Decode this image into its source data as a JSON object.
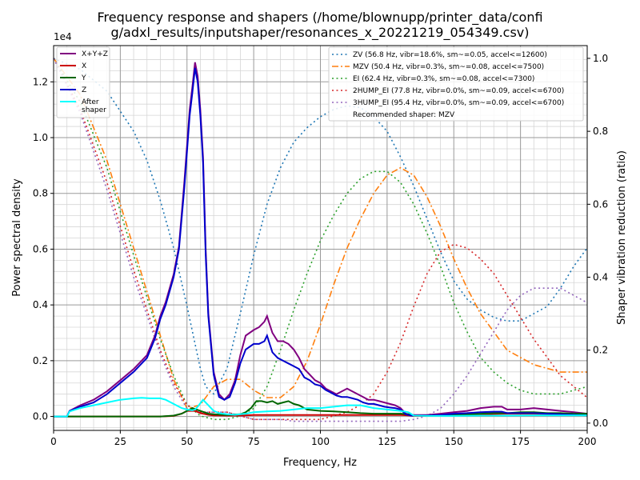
{
  "chart_data": {
    "type": "line",
    "title": "Frequency response and shapers (/home/blownupp/printer_data/confi\ng/adxl_results/inputshaper/resonances_x_20221219_054349.csv)",
    "xlabel": "Frequency, Hz",
    "ylabel": "Power spectral density",
    "y2label": "Shaper vibration reduction (ratio)",
    "y_multiplier": "1e4",
    "xlim": [
      0,
      200
    ],
    "ylim": [
      -0.05,
      1.33
    ],
    "y2lim": [
      -0.02,
      1.035
    ],
    "xticks": [
      0,
      25,
      50,
      75,
      100,
      125,
      150,
      175,
      200
    ],
    "yticks": [
      0.0,
      0.2,
      0.4,
      0.6,
      0.8,
      1.0,
      1.2
    ],
    "y2ticks": [
      0.0,
      0.2,
      0.4,
      0.6,
      0.8,
      1.0
    ],
    "grid": true,
    "legend_left": "top-left",
    "legend_right": "top-right",
    "psd_series": [
      {
        "name": "X+Y+Z",
        "color": "#800080",
        "x": [
          0,
          5,
          6,
          10,
          15,
          20,
          25,
          30,
          35,
          38,
          40,
          42,
          45,
          47,
          49,
          51,
          52,
          53,
          54,
          55,
          56,
          57,
          58,
          60,
          62,
          64,
          65,
          66,
          68,
          70,
          72,
          75,
          77,
          79,
          80,
          81,
          82,
          84,
          86,
          88,
          90,
          92,
          94,
          96,
          98,
          100,
          102,
          104,
          106,
          108,
          110,
          112,
          114,
          116,
          118,
          120,
          122,
          124,
          126,
          128,
          130,
          132,
          134,
          136,
          140,
          145,
          150,
          155,
          160,
          165,
          168,
          170,
          175,
          180,
          185,
          190,
          195,
          200
        ],
        "y": [
          0,
          0,
          0.02,
          0.04,
          0.06,
          0.09,
          0.13,
          0.17,
          0.22,
          0.29,
          0.36,
          0.41,
          0.51,
          0.61,
          0.84,
          1.1,
          1.18,
          1.27,
          1.22,
          1.1,
          0.93,
          0.6,
          0.37,
          0.16,
          0.08,
          0.06,
          0.07,
          0.08,
          0.13,
          0.22,
          0.29,
          0.31,
          0.32,
          0.34,
          0.36,
          0.33,
          0.3,
          0.27,
          0.27,
          0.26,
          0.24,
          0.21,
          0.17,
          0.15,
          0.13,
          0.12,
          0.1,
          0.09,
          0.08,
          0.09,
          0.1,
          0.09,
          0.08,
          0.07,
          0.06,
          0.06,
          0.055,
          0.05,
          0.045,
          0.04,
          0.03,
          0.01,
          0.005,
          0.005,
          0.005,
          0.01,
          0.015,
          0.02,
          0.03,
          0.035,
          0.035,
          0.025,
          0.025,
          0.03,
          0.025,
          0.02,
          0.015,
          0.01
        ]
      },
      {
        "name": "X",
        "color": "#cc0000",
        "x": [
          0,
          40,
          45,
          48,
          50,
          53,
          55,
          58,
          60,
          65,
          70,
          75,
          80,
          90,
          100,
          110,
          120,
          130,
          133,
          135,
          140,
          150,
          160,
          170,
          180,
          190,
          200
        ],
        "y": [
          0,
          0,
          0.002,
          0.01,
          0.02,
          0.02,
          0.012,
          0.006,
          0.004,
          0.003,
          0.003,
          0.005,
          0.005,
          0.005,
          0.005,
          0.005,
          0.005,
          0.005,
          0.004,
          0.002,
          0.002,
          0.004,
          0.008,
          0.01,
          0.01,
          0.008,
          0.006
        ]
      },
      {
        "name": "Y",
        "color": "#006600",
        "x": [
          0,
          40,
          45,
          48,
          50,
          52,
          55,
          58,
          60,
          65,
          70,
          72,
          74,
          76,
          78,
          80,
          82,
          84,
          86,
          88,
          90,
          92,
          95,
          100,
          105,
          110,
          115,
          120,
          125,
          130,
          133,
          135,
          140,
          150,
          160,
          165,
          170,
          175,
          180,
          185,
          190,
          195,
          200
        ],
        "y": [
          0,
          0,
          0.003,
          0.01,
          0.02,
          0.03,
          0.02,
          0.01,
          0.008,
          0.005,
          0.008,
          0.015,
          0.03,
          0.055,
          0.055,
          0.05,
          0.055,
          0.045,
          0.05,
          0.055,
          0.045,
          0.04,
          0.025,
          0.02,
          0.018,
          0.015,
          0.012,
          0.01,
          0.01,
          0.01,
          0.008,
          0.003,
          0.003,
          0.005,
          0.01,
          0.012,
          0.012,
          0.015,
          0.015,
          0.012,
          0.012,
          0.01,
          0.01
        ]
      },
      {
        "name": "Z",
        "color": "#0000cc",
        "x": [
          0,
          5,
          6,
          10,
          15,
          20,
          25,
          30,
          35,
          38,
          40,
          42,
          45,
          47,
          49,
          51,
          52,
          53,
          54,
          55,
          56,
          57,
          58,
          60,
          62,
          64,
          65,
          66,
          68,
          70,
          72,
          75,
          77,
          79,
          80,
          81,
          82,
          84,
          86,
          88,
          90,
          92,
          94,
          96,
          98,
          100,
          102,
          104,
          106,
          108,
          110,
          112,
          114,
          116,
          118,
          120,
          122,
          124,
          126,
          128,
          130,
          132,
          134,
          136,
          140,
          145,
          150,
          155,
          160,
          165,
          168,
          170,
          175,
          180,
          185,
          190,
          195,
          200
        ],
        "y": [
          0,
          0,
          0.02,
          0.035,
          0.05,
          0.08,
          0.12,
          0.16,
          0.21,
          0.28,
          0.35,
          0.4,
          0.5,
          0.6,
          0.82,
          1.08,
          1.16,
          1.25,
          1.2,
          1.08,
          0.91,
          0.58,
          0.36,
          0.15,
          0.07,
          0.06,
          0.065,
          0.07,
          0.12,
          0.19,
          0.24,
          0.26,
          0.26,
          0.27,
          0.29,
          0.26,
          0.23,
          0.21,
          0.2,
          0.19,
          0.18,
          0.17,
          0.14,
          0.13,
          0.115,
          0.11,
          0.095,
          0.085,
          0.075,
          0.07,
          0.07,
          0.065,
          0.06,
          0.05,
          0.045,
          0.045,
          0.04,
          0.035,
          0.032,
          0.03,
          0.025,
          0.008,
          0.003,
          0.003,
          0.003,
          0.005,
          0.01,
          0.012,
          0.015,
          0.017,
          0.017,
          0.012,
          0.012,
          0.012,
          0.01,
          0.008,
          0.006,
          0.004
        ]
      },
      {
        "name": "After\nshaper",
        "color": "#00ffff",
        "x": [
          0,
          5,
          6,
          10,
          15,
          20,
          25,
          30,
          33,
          36,
          40,
          42,
          44,
          46,
          48,
          50,
          52,
          53,
          54,
          56,
          58,
          60,
          62,
          65,
          68,
          70,
          72,
          75,
          80,
          85,
          90,
          95,
          100,
          105,
          110,
          115,
          120,
          125,
          130,
          133,
          135,
          140,
          150,
          160,
          170,
          180,
          190,
          200
        ],
        "y": [
          0,
          0,
          0.018,
          0.03,
          0.04,
          0.05,
          0.06,
          0.065,
          0.067,
          0.065,
          0.065,
          0.06,
          0.05,
          0.04,
          0.03,
          0.025,
          0.022,
          0.025,
          0.035,
          0.06,
          0.04,
          0.02,
          0.012,
          0.008,
          0.006,
          0.008,
          0.01,
          0.015,
          0.018,
          0.02,
          0.025,
          0.03,
          0.03,
          0.035,
          0.04,
          0.04,
          0.03,
          0.025,
          0.02,
          0.015,
          0.003,
          0.002,
          0.002,
          0.003,
          0.003,
          0.004,
          0.004,
          0.004
        ]
      }
    ],
    "shaper_series": [
      {
        "name": "ZV (56.8 Hz, vibr=18.6%, sm~=0.05, accel<=12600)",
        "color": "#1f77b4",
        "style": "dotted",
        "x": [
          0,
          10,
          20,
          30,
          35,
          40,
          45,
          50,
          55,
          57,
          60,
          65,
          70,
          75,
          80,
          85,
          90,
          95,
          100,
          105,
          110,
          115,
          120,
          125,
          130,
          135,
          140,
          145,
          150,
          155,
          160,
          165,
          170,
          175,
          180,
          185,
          190,
          195,
          200
        ],
        "y": [
          1.0,
          0.97,
          0.91,
          0.8,
          0.72,
          0.61,
          0.48,
          0.32,
          0.15,
          0.1,
          0.08,
          0.15,
          0.3,
          0.46,
          0.6,
          0.7,
          0.77,
          0.81,
          0.84,
          0.86,
          0.87,
          0.865,
          0.84,
          0.8,
          0.73,
          0.65,
          0.56,
          0.47,
          0.39,
          0.34,
          0.31,
          0.29,
          0.28,
          0.28,
          0.3,
          0.32,
          0.37,
          0.43,
          0.48
        ]
      },
      {
        "name": "MZV (50.4 Hz, vibr=0.3%, sm~=0.08, accel<=7500)",
        "color": "#ff7f0e",
        "style": "dashdot",
        "x": [
          0,
          10,
          20,
          30,
          40,
          45,
          50,
          55,
          60,
          65,
          70,
          75,
          80,
          85,
          90,
          95,
          100,
          105,
          110,
          115,
          120,
          125,
          130,
          135,
          140,
          145,
          150,
          155,
          160,
          165,
          170,
          175,
          180,
          185,
          190,
          195,
          200
        ],
        "y": [
          1.0,
          0.9,
          0.72,
          0.48,
          0.24,
          0.12,
          0.04,
          0.05,
          0.1,
          0.12,
          0.12,
          0.09,
          0.07,
          0.07,
          0.1,
          0.17,
          0.27,
          0.38,
          0.48,
          0.56,
          0.63,
          0.68,
          0.7,
          0.68,
          0.62,
          0.54,
          0.45,
          0.37,
          0.3,
          0.25,
          0.2,
          0.18,
          0.16,
          0.15,
          0.14,
          0.14,
          0.14
        ]
      },
      {
        "name": "EI (62.4 Hz, vibr=0.3%, sm~=0.08, accel<=7300)",
        "color": "#2ca02c",
        "style": "dotted",
        "x": [
          0,
          10,
          20,
          30,
          40,
          45,
          50,
          55,
          60,
          65,
          70,
          75,
          80,
          85,
          90,
          95,
          100,
          105,
          110,
          115,
          120,
          125,
          130,
          135,
          140,
          145,
          150,
          155,
          160,
          165,
          170,
          175,
          180,
          185,
          190,
          195,
          200
        ],
        "y": [
          1.0,
          0.88,
          0.7,
          0.46,
          0.23,
          0.13,
          0.05,
          0.02,
          0.01,
          0.01,
          0.02,
          0.04,
          0.1,
          0.2,
          0.31,
          0.41,
          0.5,
          0.57,
          0.63,
          0.67,
          0.69,
          0.69,
          0.66,
          0.6,
          0.52,
          0.43,
          0.33,
          0.25,
          0.18,
          0.14,
          0.11,
          0.09,
          0.08,
          0.08,
          0.08,
          0.09,
          0.1
        ]
      },
      {
        "name": "2HUMP_EI (77.8 Hz, vibr=0.0%, sm~=0.09, accel<=6700)",
        "color": "#d62728",
        "style": "dotted",
        "x": [
          0,
          10,
          20,
          30,
          40,
          45,
          50,
          55,
          60,
          65,
          70,
          75,
          80,
          85,
          90,
          95,
          100,
          105,
          110,
          115,
          120,
          125,
          130,
          135,
          140,
          145,
          150,
          155,
          160,
          165,
          170,
          175,
          180,
          185,
          190,
          195,
          200
        ],
        "y": [
          1.0,
          0.86,
          0.66,
          0.42,
          0.2,
          0.11,
          0.05,
          0.03,
          0.03,
          0.03,
          0.02,
          0.01,
          0.01,
          0.01,
          0.01,
          0.01,
          0.01,
          0.02,
          0.03,
          0.05,
          0.08,
          0.14,
          0.22,
          0.32,
          0.41,
          0.47,
          0.49,
          0.48,
          0.45,
          0.41,
          0.35,
          0.29,
          0.23,
          0.18,
          0.13,
          0.1,
          0.07
        ]
      },
      {
        "name": "3HUMP_EI (95.4 Hz, vibr=0.0%, sm~=0.09, accel<=6700)",
        "color": "#9467bd",
        "style": "dotted",
        "x": [
          0,
          10,
          20,
          30,
          40,
          45,
          50,
          55,
          60,
          65,
          70,
          75,
          80,
          85,
          90,
          95,
          100,
          105,
          110,
          115,
          120,
          125,
          130,
          135,
          140,
          145,
          150,
          155,
          160,
          165,
          170,
          175,
          180,
          185,
          190,
          195,
          200
        ],
        "y": [
          1.0,
          0.85,
          0.64,
          0.4,
          0.19,
          0.1,
          0.04,
          0.03,
          0.03,
          0.03,
          0.02,
          0.01,
          0.01,
          0.01,
          0.005,
          0.005,
          0.005,
          0.005,
          0.005,
          0.005,
          0.005,
          0.005,
          0.005,
          0.01,
          0.02,
          0.04,
          0.08,
          0.13,
          0.19,
          0.25,
          0.31,
          0.35,
          0.37,
          0.37,
          0.37,
          0.35,
          0.33
        ]
      }
    ],
    "recommended": "Recommended shaper: MZV"
  }
}
